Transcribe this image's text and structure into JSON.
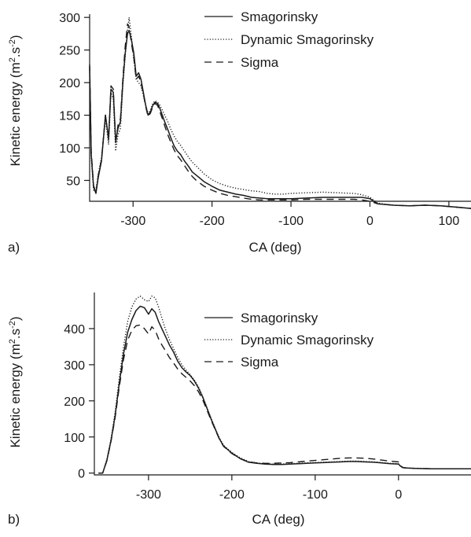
{
  "figure": {
    "panels": [
      {
        "label": "a)"
      },
      {
        "label": "b)"
      }
    ]
  },
  "chart_data": [
    {
      "type": "line",
      "panel_label": "a)",
      "xlabel": "CA (deg)",
      "ylabel": "Kinetic energy (m².s⁻²)",
      "xlim": [
        -355,
        128
      ],
      "ylim": [
        18,
        305
      ],
      "xticks": [
        -300,
        -200,
        -100,
        0,
        100
      ],
      "yticks": [
        50,
        100,
        150,
        200,
        250,
        300
      ],
      "legend_position": "top-right",
      "series": [
        {
          "name": "Smagorinsky",
          "style": "solid",
          "color": "#1a1a1a",
          "x": [
            -355,
            -353,
            -350,
            -347,
            -344,
            -340,
            -335,
            -331,
            -328,
            -325,
            -322,
            -319,
            -316,
            -313,
            -310,
            -307,
            -305,
            -302,
            -299,
            -296,
            -293,
            -290,
            -287,
            -284,
            -281,
            -278,
            -275,
            -272,
            -269,
            -266,
            -263,
            -260,
            -256,
            -252,
            -248,
            -244,
            -240,
            -235,
            -230,
            -225,
            -220,
            -210,
            -200,
            -190,
            -180,
            -170,
            -160,
            -150,
            -140,
            -130,
            -120,
            -110,
            -100,
            -80,
            -60,
            -40,
            -20,
            -10,
            0,
            10,
            30,
            50,
            70,
            90,
            110,
            128
          ],
          "y": [
            225,
            90,
            40,
            30,
            55,
            80,
            150,
            115,
            190,
            185,
            110,
            130,
            140,
            200,
            245,
            275,
            280,
            265,
            245,
            210,
            215,
            205,
            185,
            165,
            150,
            155,
            165,
            170,
            168,
            160,
            150,
            140,
            128,
            115,
            103,
            95,
            90,
            80,
            72,
            63,
            58,
            48,
            41,
            35,
            32,
            29,
            27,
            24,
            23,
            22,
            22,
            22,
            22,
            23,
            24,
            24,
            24,
            24,
            22,
            14,
            12,
            11,
            12,
            11,
            9,
            7
          ]
        },
        {
          "name": "Dynamic Smagorinsky",
          "style": "dotted",
          "color": "#1a1a1a",
          "x": [
            -355,
            -353,
            -350,
            -347,
            -344,
            -340,
            -335,
            -331,
            -328,
            -325,
            -322,
            -319,
            -316,
            -313,
            -310,
            -307,
            -305,
            -302,
            -299,
            -296,
            -293,
            -290,
            -287,
            -284,
            -281,
            -278,
            -275,
            -272,
            -269,
            -266,
            -263,
            -260,
            -256,
            -252,
            -248,
            -244,
            -240,
            -235,
            -230,
            -225,
            -220,
            -210,
            -200,
            -190,
            -180,
            -170,
            -160,
            -150,
            -140,
            -130,
            -120,
            -110,
            -100,
            -80,
            -60,
            -40,
            -20,
            -10,
            0,
            10,
            30,
            50,
            70,
            90,
            110,
            128
          ],
          "y": [
            220,
            85,
            35,
            35,
            60,
            85,
            145,
            105,
            185,
            175,
            95,
            120,
            130,
            195,
            240,
            280,
            300,
            270,
            235,
            205,
            200,
            195,
            180,
            165,
            152,
            158,
            168,
            172,
            170,
            165,
            158,
            150,
            140,
            128,
            118,
            110,
            104,
            95,
            86,
            78,
            72,
            60,
            51,
            45,
            41,
            38,
            36,
            34,
            33,
            30,
            29,
            29,
            30,
            31,
            32,
            31,
            30,
            28,
            24,
            15,
            12,
            11,
            12,
            11,
            9,
            7
          ]
        },
        {
          "name": "Sigma",
          "style": "dashed",
          "color": "#1a1a1a",
          "x": [
            -355,
            -353,
            -350,
            -347,
            -344,
            -340,
            -335,
            -331,
            -328,
            -325,
            -322,
            -319,
            -316,
            -313,
            -310,
            -307,
            -305,
            -302,
            -299,
            -296,
            -293,
            -290,
            -287,
            -284,
            -281,
            -278,
            -275,
            -272,
            -269,
            -266,
            -263,
            -260,
            -256,
            -252,
            -248,
            -244,
            -240,
            -235,
            -230,
            -225,
            -220,
            -210,
            -200,
            -190,
            -180,
            -170,
            -160,
            -150,
            -140,
            -130,
            -120,
            -110,
            -100,
            -80,
            -60,
            -40,
            -20,
            -10,
            0,
            10,
            30,
            50,
            70,
            90,
            110,
            128
          ],
          "y": [
            228,
            95,
            42,
            32,
            58,
            82,
            150,
            112,
            195,
            190,
            108,
            135,
            145,
            205,
            255,
            290,
            285,
            260,
            238,
            205,
            210,
            200,
            183,
            163,
            148,
            153,
            163,
            168,
            165,
            155,
            145,
            134,
            120,
            108,
            97,
            88,
            82,
            73,
            64,
            56,
            50,
            41,
            35,
            30,
            27,
            25,
            23,
            21,
            20,
            20,
            20,
            20,
            20,
            21,
            21,
            21,
            21,
            20,
            18,
            14,
            12,
            11,
            12,
            11,
            9,
            7
          ]
        }
      ]
    },
    {
      "type": "line",
      "panel_label": "b)",
      "xlabel": "CA (deg)",
      "ylabel": "Kinetic energy (m².s⁻²)",
      "xlim": [
        -365,
        87
      ],
      "ylim": [
        -5,
        500
      ],
      "xticks": [
        -300,
        -200,
        -100,
        0
      ],
      "yticks": [
        0,
        100,
        200,
        300,
        400
      ],
      "legend_position": "top-right",
      "series": [
        {
          "name": "Smagorinsky",
          "style": "solid",
          "color": "#1a1a1a",
          "x": [
            -360,
            -355,
            -350,
            -345,
            -340,
            -335,
            -330,
            -325,
            -320,
            -315,
            -310,
            -305,
            -300,
            -296,
            -292,
            -288,
            -284,
            -280,
            -275,
            -270,
            -265,
            -260,
            -255,
            -250,
            -245,
            -240,
            -235,
            -230,
            -225,
            -220,
            -215,
            -210,
            -200,
            -190,
            -180,
            -170,
            -160,
            -150,
            -140,
            -130,
            -120,
            -110,
            -100,
            -90,
            -80,
            -70,
            -60,
            -50,
            -40,
            -30,
            -20,
            -10,
            0,
            2,
            5,
            10,
            20,
            40,
            60,
            87
          ],
          "y": [
            0,
            0,
            35,
            90,
            160,
            250,
            330,
            390,
            425,
            450,
            462,
            458,
            440,
            455,
            445,
            420,
            400,
            380,
            355,
            335,
            310,
            292,
            280,
            270,
            255,
            235,
            210,
            180,
            150,
            122,
            95,
            75,
            55,
            40,
            30,
            27,
            25,
            24,
            24,
            25,
            26,
            27,
            28,
            29,
            30,
            31,
            32,
            32,
            31,
            30,
            28,
            26,
            25,
            20,
            15,
            14,
            13,
            12,
            12,
            12
          ]
        },
        {
          "name": "Dynamic Smagorinsky",
          "style": "dotted",
          "color": "#1a1a1a",
          "x": [
            -360,
            -355,
            -350,
            -345,
            -340,
            -335,
            -330,
            -325,
            -320,
            -315,
            -310,
            -305,
            -300,
            -296,
            -292,
            -288,
            -284,
            -280,
            -275,
            -270,
            -265,
            -260,
            -255,
            -250,
            -245,
            -240,
            -235,
            -230,
            -225,
            -220,
            -215,
            -210,
            -200,
            -190,
            -180,
            -170,
            -160,
            -150,
            -140,
            -130,
            -120,
            -110,
            -100,
            -90,
            -80,
            -70,
            -60,
            -50,
            -40,
            -30,
            -20,
            -10,
            0,
            2,
            5,
            10,
            20,
            40,
            60,
            87
          ],
          "y": [
            0,
            0,
            38,
            95,
            170,
            265,
            350,
            420,
            460,
            482,
            490,
            480,
            475,
            490,
            485,
            460,
            430,
            400,
            370,
            345,
            320,
            300,
            285,
            272,
            258,
            238,
            212,
            182,
            152,
            124,
            97,
            77,
            57,
            42,
            32,
            28,
            26,
            25,
            25,
            26,
            27,
            28,
            29,
            30,
            31,
            32,
            33,
            33,
            32,
            31,
            29,
            27,
            26,
            20,
            15,
            14,
            13,
            12,
            12,
            12
          ]
        },
        {
          "name": "Sigma",
          "style": "dashed",
          "color": "#1a1a1a",
          "x": [
            -360,
            -355,
            -350,
            -345,
            -340,
            -335,
            -330,
            -325,
            -320,
            -315,
            -310,
            -305,
            -300,
            -296,
            -292,
            -288,
            -284,
            -280,
            -275,
            -270,
            -265,
            -260,
            -255,
            -250,
            -245,
            -240,
            -235,
            -230,
            -225,
            -220,
            -215,
            -210,
            -200,
            -190,
            -180,
            -170,
            -160,
            -150,
            -140,
            -130,
            -120,
            -110,
            -100,
            -90,
            -80,
            -70,
            -60,
            -50,
            -40,
            -30,
            -20,
            -10,
            0,
            2,
            5,
            10,
            20,
            40,
            60,
            87
          ],
          "y": [
            0,
            0,
            34,
            88,
            155,
            240,
            315,
            368,
            395,
            408,
            410,
            400,
            385,
            405,
            395,
            372,
            355,
            340,
            320,
            305,
            288,
            275,
            265,
            255,
            242,
            225,
            203,
            175,
            147,
            120,
            94,
            74,
            54,
            40,
            31,
            28,
            27,
            27,
            28,
            29,
            31,
            33,
            35,
            37,
            39,
            41,
            42,
            42,
            41,
            39,
            36,
            33,
            31,
            22,
            16,
            14,
            13,
            12,
            12,
            12
          ]
        }
      ]
    }
  ]
}
